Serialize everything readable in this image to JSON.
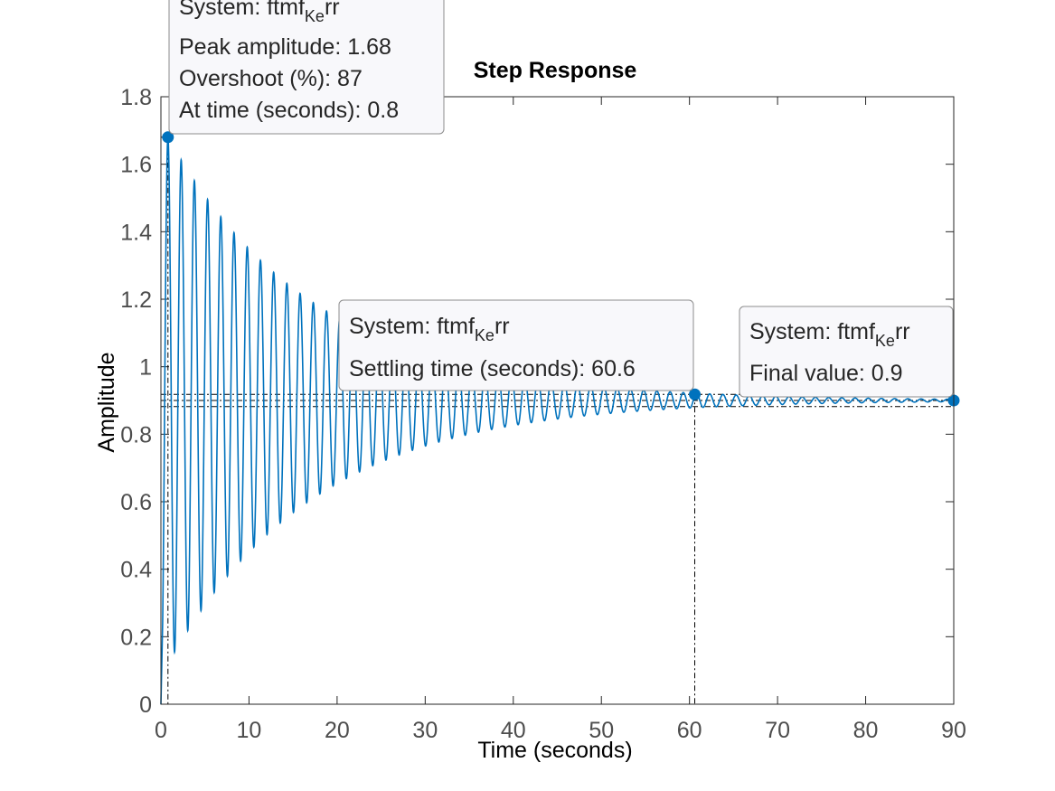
{
  "chart_data": {
    "type": "line",
    "title": "Step Response",
    "xlabel": "Time (seconds)",
    "ylabel": "Amplitude",
    "xlim": [
      0,
      90
    ],
    "ylim": [
      0,
      1.8
    ],
    "xticks": [
      "0",
      "10",
      "20",
      "30",
      "40",
      "50",
      "60",
      "70",
      "80",
      "90"
    ],
    "yticks": [
      "0",
      "0.2",
      "0.4",
      "0.6",
      "0.8",
      "1",
      "1.2",
      "1.4",
      "1.6",
      "1.8"
    ],
    "grid": false,
    "series": [
      {
        "color": "#0072bd",
        "response": {
          "final_value": 0.9,
          "peak_value": 1.68,
          "peak_time": 0.8,
          "oscillation_period": 1.5,
          "decay_rate": 0.06
        }
      }
    ],
    "settling_band": [
      0.882,
      0.918
    ],
    "markers": [
      {
        "name": "peak",
        "x": 0.8,
        "y": 1.68
      },
      {
        "name": "settling",
        "x": 60.6,
        "y": 0.918
      },
      {
        "name": "final",
        "x": 90,
        "y": 0.9
      }
    ],
    "datatips": {
      "peak": {
        "system_prefix": "System: ftmf",
        "system_sub": "Ke",
        "system_suffix": "rr",
        "lines": [
          "Peak amplitude: 1.68",
          "Overshoot (%): 87",
          "At time (seconds): 0.8"
        ]
      },
      "settling": {
        "system_prefix": "System: ftmf",
        "system_sub": "Ke",
        "system_suffix": "rr",
        "lines": [
          "Settling time (seconds): 60.6"
        ]
      },
      "final": {
        "system_prefix": "System: ftmf",
        "system_sub": "Ke",
        "system_suffix": "rr",
        "lines": [
          "Final value: 0.9"
        ]
      }
    }
  }
}
